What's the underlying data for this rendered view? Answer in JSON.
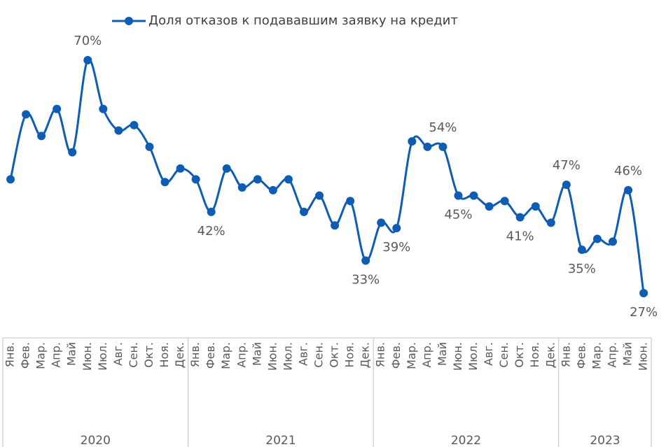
{
  "chart_data": {
    "type": "line",
    "series": [
      {
        "name": "Доля отказов к подававшим заявку на кредит",
        "color": "#0f5cb4",
        "values": [
          48,
          60,
          56,
          61,
          53,
          70,
          61,
          57,
          58,
          54,
          47.5,
          50,
          48,
          42,
          50,
          46.5,
          48,
          46,
          48,
          42,
          45,
          39.5,
          44,
          33,
          40,
          39,
          55,
          54,
          54,
          45,
          45,
          43,
          44,
          41,
          43,
          40,
          47,
          35,
          37,
          36.5,
          46,
          27
        ],
        "value_labels": [
          null,
          null,
          null,
          null,
          null,
          "70%",
          null,
          null,
          null,
          null,
          null,
          null,
          null,
          "42%",
          null,
          null,
          null,
          null,
          null,
          null,
          null,
          null,
          null,
          "33%",
          null,
          "39%",
          null,
          null,
          "54%",
          "45%",
          null,
          null,
          null,
          "41%",
          null,
          null,
          "47%",
          "35%",
          null,
          null,
          "46%",
          "27%"
        ]
      }
    ],
    "groups": [
      {
        "name": "2020",
        "categories": [
          "Янв.",
          "Фев.",
          "Мар.",
          "Апр.",
          "Май",
          "Июн.",
          "Июл.",
          "Авг.",
          "Сен.",
          "Окт.",
          "Ноя.",
          "Дек."
        ]
      },
      {
        "name": "2021",
        "categories": [
          "Янв.",
          "Фев.",
          "Мар.",
          "Апр.",
          "Май",
          "Июн.",
          "Июл.",
          "Авг.",
          "Сен.",
          "Окт.",
          "Ноя.",
          "Дек."
        ]
      },
      {
        "name": "2022",
        "categories": [
          "Янв.",
          "Фев.",
          "Мар.",
          "Апр.",
          "Май",
          "Июн.",
          "Июл.",
          "Авг.",
          "Сен.",
          "Окт.",
          "Ноя.",
          "Дек."
        ]
      },
      {
        "name": "2023",
        "categories": [
          "Янв.",
          "Фев.",
          "Мар.",
          "Апр.",
          "Май",
          "Июн."
        ]
      }
    ],
    "legend": "top"
  }
}
